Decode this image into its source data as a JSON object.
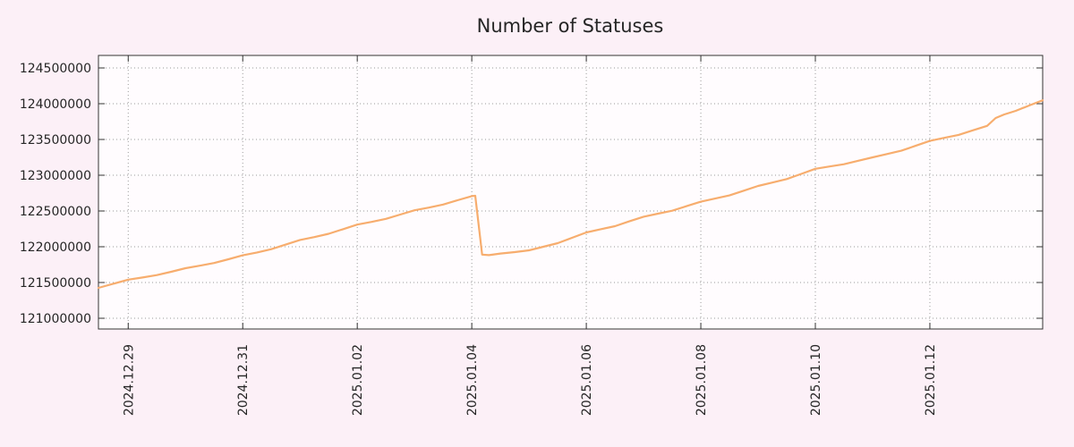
{
  "page": {
    "background": "#fcf0f7"
  },
  "chart_data": {
    "type": "line",
    "title": "Number of Statuses",
    "series_name": "statuses",
    "line_color": "#f7ad6e",
    "plot_background": "#fffcfe",
    "grid_color": "#9a9a9a",
    "border_color": "#333333",
    "text_color": "#262626",
    "grid": true,
    "legend_position": "none",
    "x_unit": "days since 2024-12-28 00:00",
    "xlim": [
      0.48,
      16.97
    ],
    "ylim": [
      120850000,
      124675000
    ],
    "ylabel": "",
    "xlabel": "",
    "y_ticks": [
      121000000,
      121500000,
      122000000,
      122500000,
      123000000,
      123500000,
      124000000,
      124500000
    ],
    "x_ticks": [
      {
        "t": 1,
        "label": "2024.12.29"
      },
      {
        "t": 3,
        "label": "2024.12.31"
      },
      {
        "t": 5,
        "label": "2025.01.02"
      },
      {
        "t": 7,
        "label": "2025.01.04"
      },
      {
        "t": 9,
        "label": "2025.01.06"
      },
      {
        "t": 11,
        "label": "2025.01.08"
      },
      {
        "t": 13,
        "label": "2025.01.10"
      },
      {
        "t": 15,
        "label": "2025.01.12"
      }
    ],
    "annotations": [
      {
        "t": 7.1,
        "note": "sharp drop from ~122710000 to ~121880000 on 2025.01.04"
      }
    ],
    "points": [
      [
        0.48,
        121425000
      ],
      [
        1.0,
        121540000
      ],
      [
        1.25,
        121570000
      ],
      [
        1.5,
        121604000
      ],
      [
        1.75,
        121650000
      ],
      [
        2.0,
        121700000
      ],
      [
        2.25,
        121735000
      ],
      [
        2.5,
        121772000
      ],
      [
        2.75,
        121825000
      ],
      [
        3.0,
        121880000
      ],
      [
        3.25,
        121920000
      ],
      [
        3.5,
        121966000
      ],
      [
        3.75,
        122030000
      ],
      [
        4.0,
        122095000
      ],
      [
        4.25,
        122135000
      ],
      [
        4.5,
        122181000
      ],
      [
        4.75,
        122245000
      ],
      [
        5.0,
        122310000
      ],
      [
        5.25,
        122348000
      ],
      [
        5.5,
        122390000
      ],
      [
        5.75,
        122450000
      ],
      [
        6.0,
        122510000
      ],
      [
        6.25,
        122548000
      ],
      [
        6.5,
        122590000
      ],
      [
        6.75,
        122650000
      ],
      [
        7.0,
        122708000
      ],
      [
        7.06,
        122712000
      ],
      [
        7.18,
        121890000
      ],
      [
        7.3,
        121882000
      ],
      [
        7.5,
        121905000
      ],
      [
        7.75,
        121925000
      ],
      [
        8.0,
        121950000
      ],
      [
        8.25,
        122000000
      ],
      [
        8.5,
        122050000
      ],
      [
        8.75,
        122125000
      ],
      [
        9.0,
        122200000
      ],
      [
        9.25,
        122245000
      ],
      [
        9.5,
        122288000
      ],
      [
        9.75,
        122355000
      ],
      [
        10.0,
        122420000
      ],
      [
        10.25,
        122462000
      ],
      [
        10.5,
        122504000
      ],
      [
        10.75,
        122567000
      ],
      [
        11.0,
        122630000
      ],
      [
        11.25,
        122674000
      ],
      [
        11.5,
        122718000
      ],
      [
        11.75,
        122784000
      ],
      [
        12.0,
        122850000
      ],
      [
        12.25,
        122898000
      ],
      [
        12.5,
        122946000
      ],
      [
        12.75,
        123018000
      ],
      [
        13.0,
        123090000
      ],
      [
        13.25,
        123122000
      ],
      [
        13.5,
        123154000
      ],
      [
        13.75,
        123202000
      ],
      [
        14.0,
        123250000
      ],
      [
        14.25,
        123296000
      ],
      [
        14.5,
        123342000
      ],
      [
        14.75,
        123411000
      ],
      [
        15.0,
        123480000
      ],
      [
        15.25,
        123522000
      ],
      [
        15.5,
        123564000
      ],
      [
        15.75,
        123627000
      ],
      [
        16.0,
        123690000
      ],
      [
        16.15,
        123800000
      ],
      [
        16.3,
        123850000
      ],
      [
        16.5,
        123900000
      ],
      [
        16.75,
        123980000
      ],
      [
        16.97,
        124048000
      ]
    ]
  }
}
